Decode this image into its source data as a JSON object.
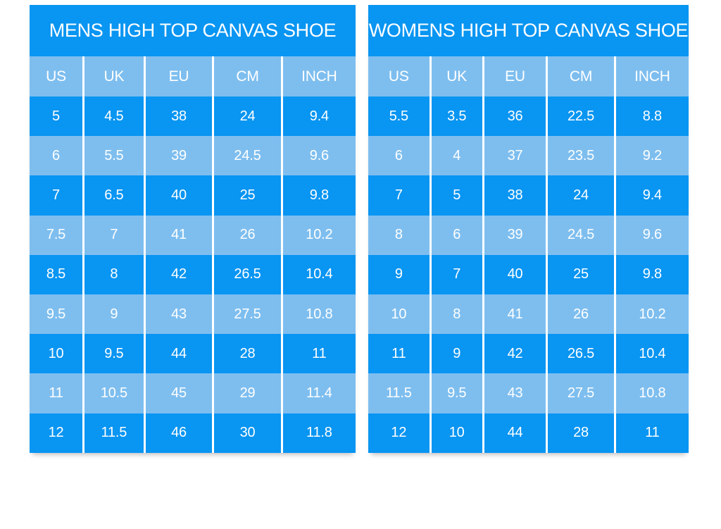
{
  "colors": {
    "dark_blue": "#0995F2",
    "light_blue": "#7EBEEF",
    "text": "#FFFFFF",
    "background": "#FFFFFF"
  },
  "chart_data": [
    {
      "type": "table",
      "title": "MENS HIGH TOP CANVAS SHOE",
      "columns": [
        "US",
        "UK",
        "EU",
        "CM",
        "INCH"
      ],
      "rows": [
        [
          "5",
          "4.5",
          "38",
          "24",
          "9.4"
        ],
        [
          "6",
          "5.5",
          "39",
          "24.5",
          "9.6"
        ],
        [
          "7",
          "6.5",
          "40",
          "25",
          "9.8"
        ],
        [
          "7.5",
          "7",
          "41",
          "26",
          "10.2"
        ],
        [
          "8.5",
          "8",
          "42",
          "26.5",
          "10.4"
        ],
        [
          "9.5",
          "9",
          "43",
          "27.5",
          "10.8"
        ],
        [
          "10",
          "9.5",
          "44",
          "28",
          "11"
        ],
        [
          "11",
          "10.5",
          "45",
          "29",
          "11.4"
        ],
        [
          "12",
          "11.5",
          "46",
          "30",
          "11.8"
        ]
      ],
      "layout_hints": {
        "row_striping": [
          "dark",
          "light"
        ],
        "header_background": "light_blue",
        "title_background": "dark_blue"
      }
    },
    {
      "type": "table",
      "title": "WOMENS HIGH TOP CANVAS SHOE",
      "columns": [
        "US",
        "UK",
        "EU",
        "CM",
        "INCH"
      ],
      "rows": [
        [
          "5.5",
          "3.5",
          "36",
          "22.5",
          "8.8"
        ],
        [
          "6",
          "4",
          "37",
          "23.5",
          "9.2"
        ],
        [
          "7",
          "5",
          "38",
          "24",
          "9.4"
        ],
        [
          "8",
          "6",
          "39",
          "24.5",
          "9.6"
        ],
        [
          "9",
          "7",
          "40",
          "25",
          "9.8"
        ],
        [
          "10",
          "8",
          "41",
          "26",
          "10.2"
        ],
        [
          "11",
          "9",
          "42",
          "26.5",
          "10.4"
        ],
        [
          "11.5",
          "9.5",
          "43",
          "27.5",
          "10.8"
        ],
        [
          "12",
          "10",
          "44",
          "28",
          "11"
        ]
      ],
      "layout_hints": {
        "row_striping": [
          "dark",
          "light"
        ],
        "header_background": "light_blue",
        "title_background": "dark_blue"
      }
    }
  ]
}
